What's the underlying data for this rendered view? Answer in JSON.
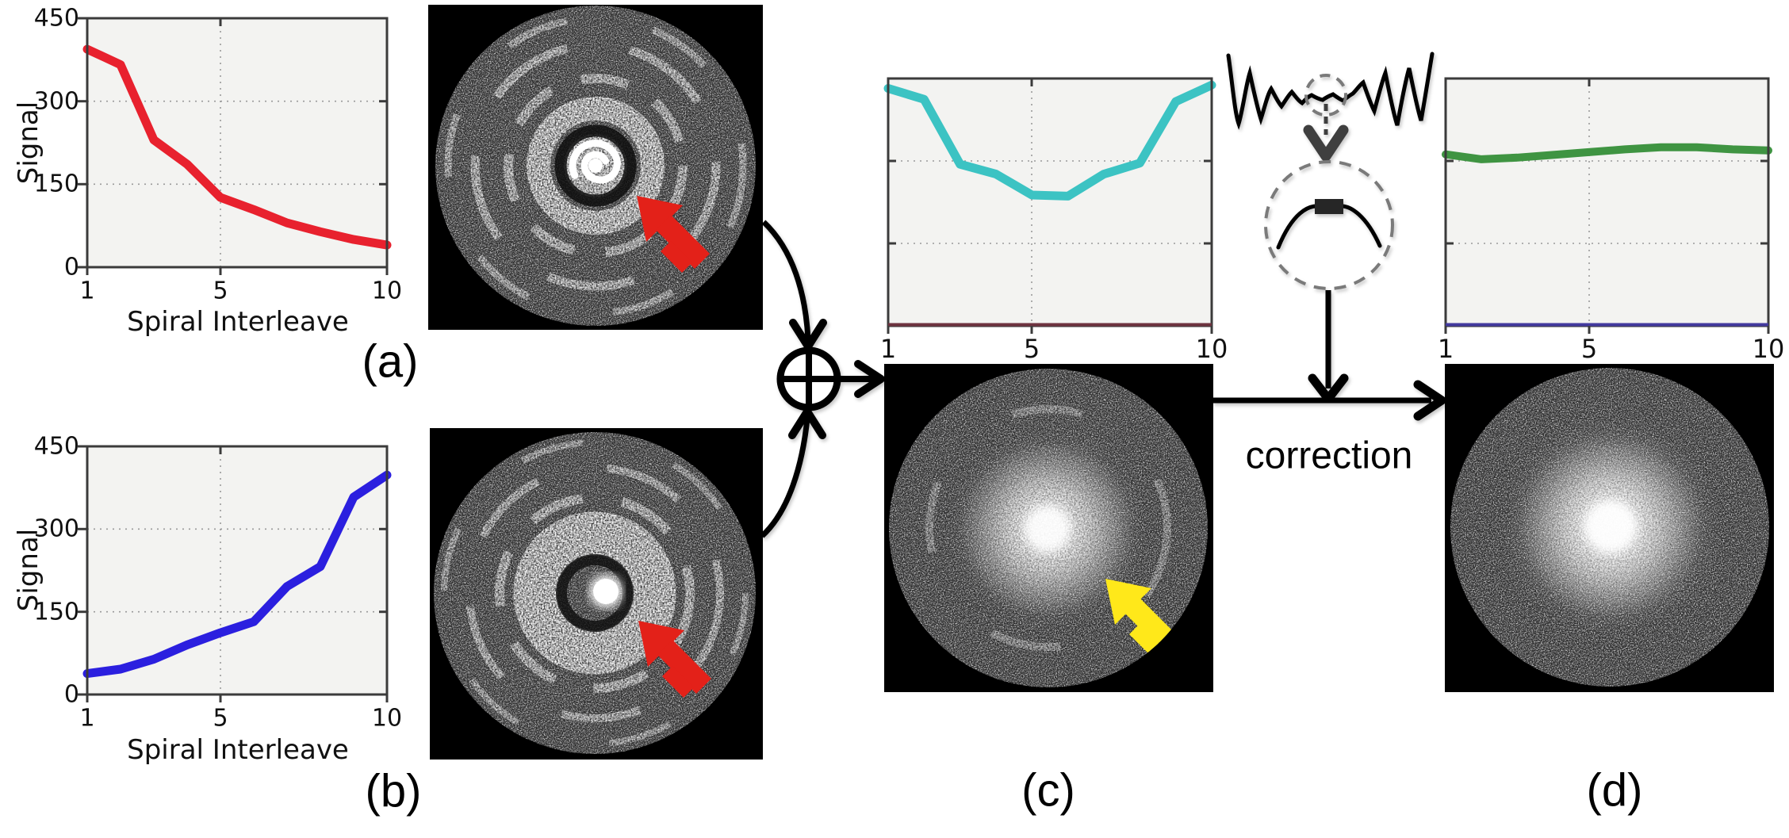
{
  "figure": {
    "panels": {
      "a": "(a)",
      "b": "(b)",
      "c": "(c)",
      "d": "(d)"
    },
    "correction_label": "correction"
  },
  "colors": {
    "red_line": "#e8212e",
    "blue_line": "#2b1fdf",
    "cyan_line": "#3cc3c3",
    "green_line": "#3f9442",
    "maroon_spine": "#6e3340",
    "purple_spine": "#433a9e",
    "plot_bg": "#f3f3f1",
    "spine": "#3b3b3b",
    "grid": "#9a9a9a",
    "arrow_black": "#000000",
    "arrow_red": "#e32119",
    "arrow_yellow": "#ffe81a",
    "schematic_grey": "#3f3f3f",
    "dashed_circle_grey": "#7a7a7a"
  },
  "chart_data": [
    {
      "id": "a",
      "type": "line",
      "x": [
        1,
        2,
        3,
        4,
        5,
        6,
        7,
        8,
        9,
        10
      ],
      "values": [
        394,
        366,
        230,
        186,
        126,
        104,
        80,
        64,
        50,
        40
      ],
      "color": "#e8212e",
      "xlabel": "Spiral Interleave",
      "ylabel": "Signal",
      "ylim": [
        0,
        450
      ],
      "yticks": [
        0,
        150,
        300,
        450
      ],
      "ytick_labels": [
        "450",
        "300",
        "150",
        "0"
      ],
      "xticks": [
        1,
        5,
        10
      ],
      "xtick_labels": [
        "1",
        "5",
        "10"
      ],
      "grid": "dotted",
      "legend": "none"
    },
    {
      "id": "b",
      "type": "line",
      "x": [
        1,
        2,
        3,
        4,
        5,
        6,
        7,
        8,
        9,
        10
      ],
      "values": [
        38,
        46,
        64,
        90,
        112,
        132,
        196,
        232,
        358,
        398
      ],
      "color": "#2b1fdf",
      "xlabel": "Spiral Interleave",
      "ylabel": "Signal",
      "ylim": [
        0,
        450
      ],
      "yticks": [
        0,
        150,
        300,
        450
      ],
      "ytick_labels": [
        "450",
        "300",
        "150",
        "0"
      ],
      "xticks": [
        1,
        5,
        10
      ],
      "xtick_labels": [
        "1",
        "5",
        "10"
      ],
      "grid": "dotted",
      "legend": "none"
    },
    {
      "id": "c",
      "type": "line",
      "x": [
        1,
        2,
        3,
        4,
        5,
        6,
        7,
        8,
        9,
        10
      ],
      "values": [
        432,
        412,
        294,
        276,
        238,
        236,
        276,
        296,
        408,
        438
      ],
      "color": "#3cc3c3",
      "xlabel": "",
      "ylabel": "",
      "ylim": [
        0,
        450
      ],
      "yticks": [
        150,
        300
      ],
      "ytick_labels": [],
      "xticks": [
        1,
        5,
        10
      ],
      "xtick_labels": [
        "1",
        "5",
        "10"
      ],
      "grid": "dotted",
      "legend": "none",
      "bottom_spine": "#6e3340"
    },
    {
      "id": "d",
      "type": "line",
      "x": [
        1,
        2,
        3,
        4,
        5,
        6,
        7,
        8,
        9,
        10
      ],
      "values": [
        312,
        303,
        306,
        311,
        316,
        321,
        325,
        325,
        321,
        319
      ],
      "color": "#3f9442",
      "xlabel": "",
      "ylabel": "",
      "ylim": [
        0,
        450
      ],
      "yticks": [
        150,
        300
      ],
      "ytick_labels": [],
      "xticks": [
        1,
        5,
        10
      ],
      "xtick_labels": [
        "1",
        "5",
        "10"
      ],
      "grid": "dotted",
      "legend": "none",
      "bottom_spine": "#433a9e"
    }
  ]
}
